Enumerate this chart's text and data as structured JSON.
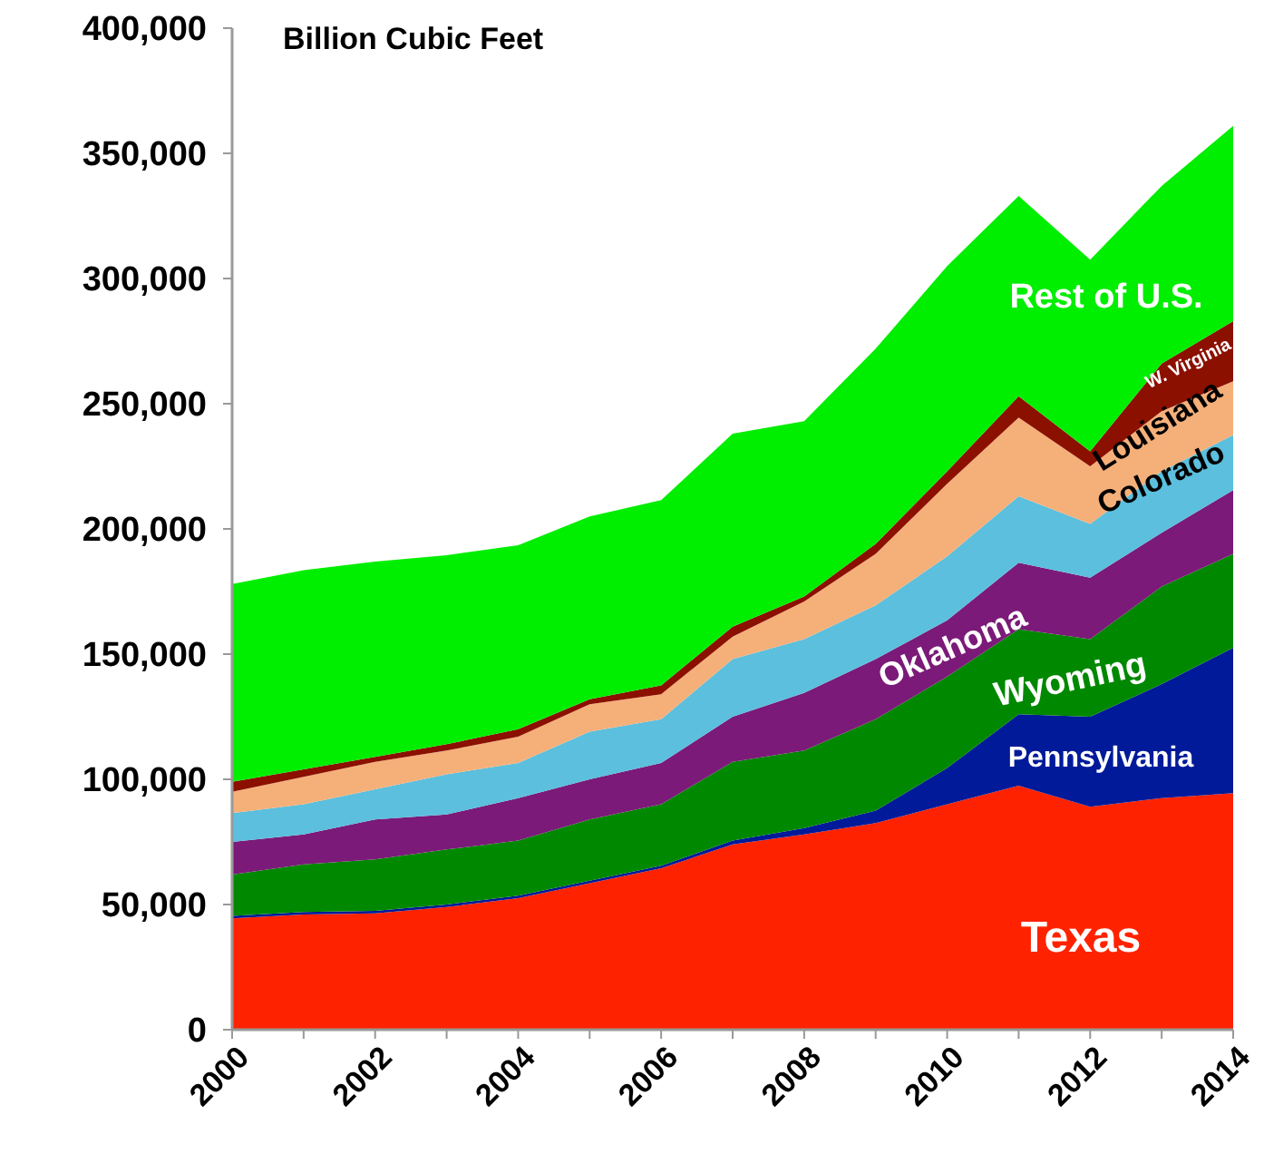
{
  "chart_data": {
    "type": "area",
    "stacked": true,
    "title": "Billion Cubic Feet",
    "x": [
      2000,
      2001,
      2002,
      2003,
      2004,
      2005,
      2006,
      2007,
      2008,
      2009,
      2010,
      2011,
      2012,
      2013,
      2014
    ],
    "xlim": [
      2000,
      2014
    ],
    "xticks": [
      2000,
      {
        "value": 2001,
        "label": null
      },
      2002,
      {
        "value": 2003,
        "label": null
      },
      2004,
      {
        "value": 2005,
        "label": null
      },
      2006,
      {
        "value": 2007,
        "label": null
      },
      2008,
      {
        "value": 2009,
        "label": null
      },
      2010,
      {
        "value": 2011,
        "label": null
      },
      2012,
      {
        "value": 2013,
        "label": null
      },
      2014
    ],
    "ylim": [
      0,
      400000
    ],
    "yticks": [
      {
        "value": 0,
        "label": "0"
      },
      {
        "value": 50000,
        "label": "50,000"
      },
      {
        "value": 100000,
        "label": "100,000"
      },
      {
        "value": 150000,
        "label": "150,000"
      },
      {
        "value": 200000,
        "label": "200,000"
      },
      {
        "value": 250000,
        "label": "250,000"
      },
      {
        "value": 300000,
        "label": "300,000"
      },
      {
        "value": 350000,
        "label": "350,000"
      },
      {
        "value": 400000,
        "label": "400,000"
      }
    ],
    "grid": false,
    "legend": false,
    "series": [
      {
        "name": "Texas",
        "color": "#ff2200",
        "values": [
          44500,
          46000,
          46500,
          49000,
          52500,
          58500,
          64500,
          74000,
          78000,
          82500,
          90000,
          97500,
          89000,
          92500,
          94500
        ]
      },
      {
        "name": "Pennsylvania",
        "color": "#001a99",
        "values": [
          1000,
          1000,
          1000,
          1000,
          1000,
          1000,
          1000,
          1500,
          2500,
          5000,
          14500,
          28500,
          36000,
          45500,
          58000
        ]
      },
      {
        "name": "Wyoming",
        "color": "#008800",
        "values": [
          16500,
          19000,
          20500,
          22000,
          22000,
          24500,
          24500,
          31500,
          31000,
          36500,
          36500,
          34000,
          31000,
          39000,
          37500
        ]
      },
      {
        "name": "Oklahoma",
        "color": "#7b1a78",
        "values": [
          13000,
          12000,
          16000,
          14000,
          17000,
          16000,
          16500,
          18000,
          23000,
          24000,
          22500,
          26500,
          24500,
          21500,
          25500
        ]
      },
      {
        "name": "Colorado",
        "color": "#5bbfdd",
        "values": [
          11500,
          12000,
          12000,
          16000,
          14000,
          19000,
          17500,
          23000,
          21500,
          21500,
          25500,
          26500,
          21500,
          24500,
          22000
        ]
      },
      {
        "name": "Louisiana",
        "color": "#f5b07a",
        "values": [
          8500,
          11000,
          11000,
          9500,
          10500,
          11000,
          10000,
          9000,
          15000,
          20500,
          29000,
          31500,
          23000,
          24000,
          21500
        ]
      },
      {
        "name": "W. Virginia",
        "color": "#8b1000",
        "values": [
          4000,
          3000,
          2000,
          2500,
          3000,
          2000,
          3500,
          4000,
          2000,
          4000,
          5000,
          8500,
          6000,
          19000,
          24000
        ]
      },
      {
        "name": "Rest of U.S.",
        "color": "#00ee00",
        "values": [
          79000,
          79500,
          78000,
          75500,
          73500,
          73000,
          74000,
          77000,
          70000,
          78000,
          82000,
          80000,
          76500,
          71000,
          78000
        ]
      }
    ]
  }
}
